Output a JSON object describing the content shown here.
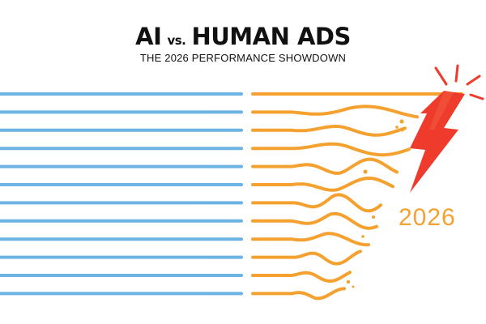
{
  "header": {
    "title_left": "AI",
    "title_vs": "vs.",
    "title_right": "HUMAN ADS",
    "subtitle": "THE 2026 PERFORMANCE SHOWDOWN"
  },
  "badge": {
    "year": "2026"
  },
  "colors": {
    "ai_lines": "#6cb4e4",
    "human_lines": "#f4a130",
    "lightning": "#ee3b2b",
    "text": "#111111"
  },
  "icons": [
    "lightning-bolt-icon",
    "spark-burst-icon"
  ]
}
